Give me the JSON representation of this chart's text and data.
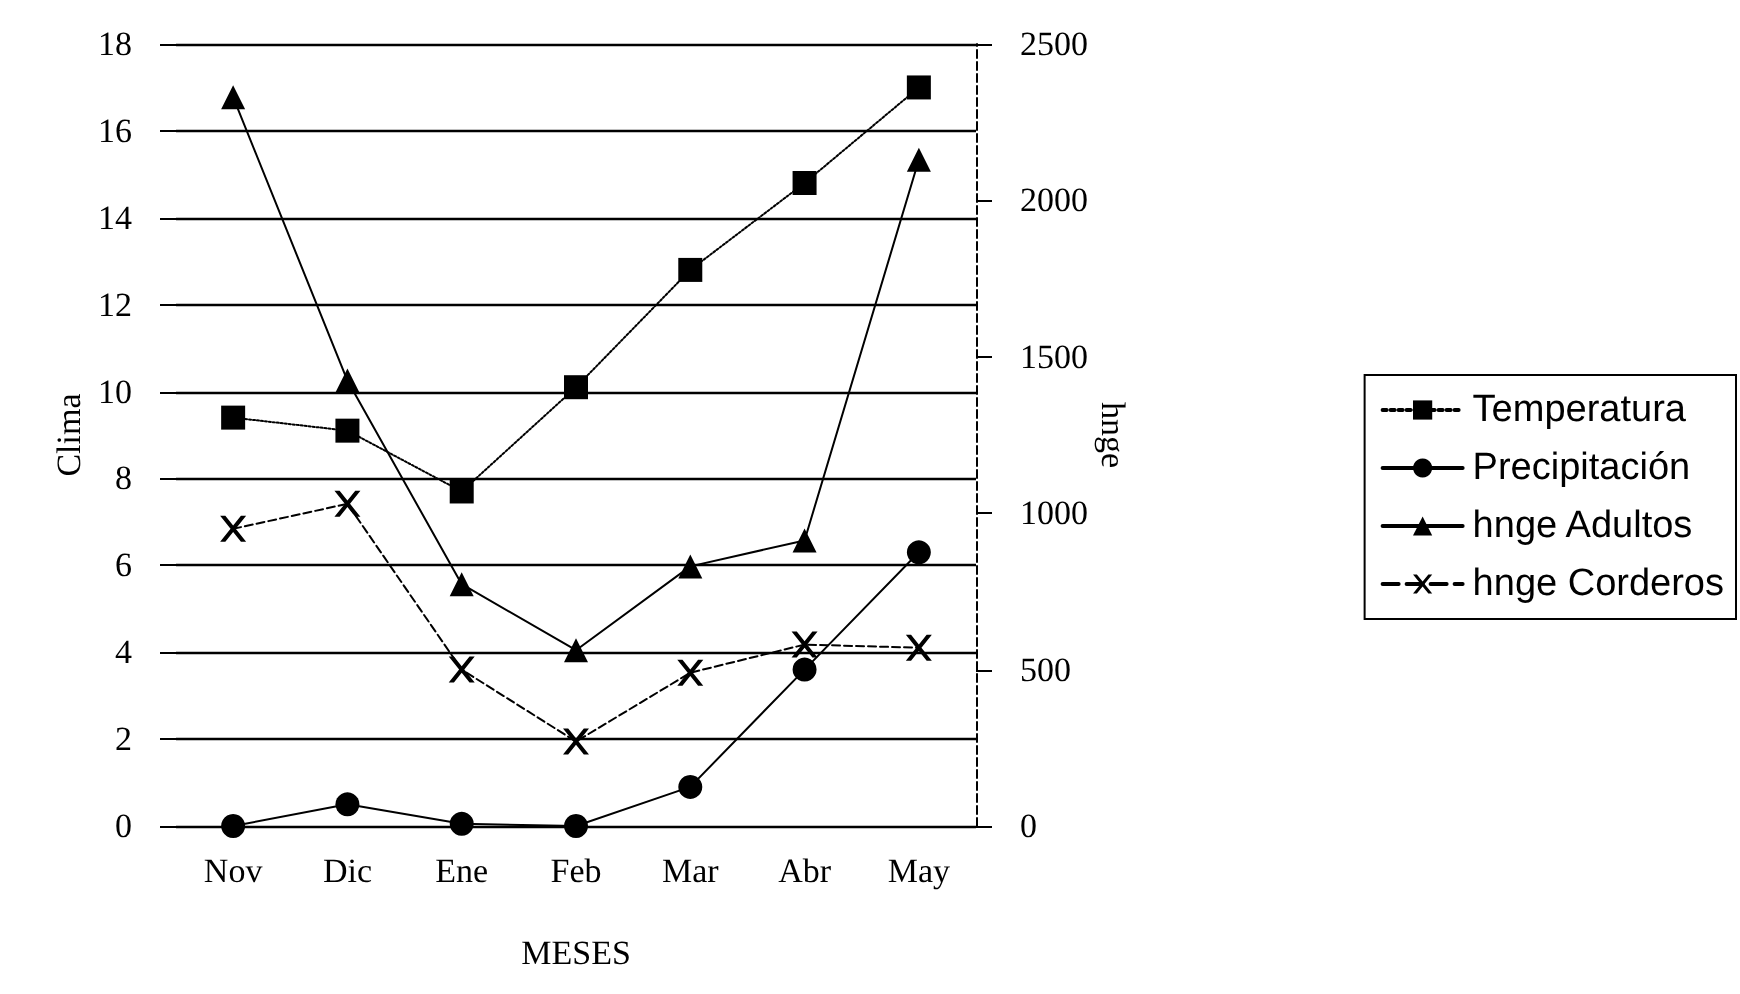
{
  "chart_data": {
    "type": "line",
    "xlabel": "MESES",
    "ylabel": "Clima",
    "y2label": "hnge",
    "categories": [
      "Nov",
      "Dic",
      "Ene",
      "Feb",
      "Mar",
      "Abr",
      "May"
    ],
    "series": [
      {
        "name": "Temperatura",
        "color": "#000000",
        "marker": "square",
        "line_style": "dotted",
        "values": [
          9.4,
          9.1,
          7.7,
          10.1,
          12.8,
          14.8,
          17.0
        ]
      },
      {
        "name": "Precipitación",
        "color": "#000000",
        "marker": "circle",
        "line_style": "solid",
        "values": [
          0,
          0.5,
          0.05,
          0,
          0.9,
          3.6,
          6.3
        ]
      },
      {
        "name": "hnge Adultos",
        "color": "#000000",
        "marker": "triangle",
        "line_style": "solid",
        "axis": "y2",
        "values": [
          2330,
          1424,
          773,
          562,
          830,
          913,
          2130
        ]
      },
      {
        "name": "hnge Corderos",
        "color": "#000000",
        "marker": "cross",
        "line_style": "dashed",
        "axis": "y2",
        "values": [
          950,
          1030,
          500,
          270,
          490,
          580,
          570
        ]
      }
    ],
    "ylim": [
      0,
      18
    ],
    "yticks": [
      0,
      2,
      4,
      6,
      8,
      10,
      12,
      14,
      16,
      18
    ],
    "y2lim": [
      0,
      2500
    ],
    "y2ticks": [
      0,
      500,
      1000,
      1500,
      2000,
      2500
    ],
    "grid": "y",
    "legend": "right"
  }
}
